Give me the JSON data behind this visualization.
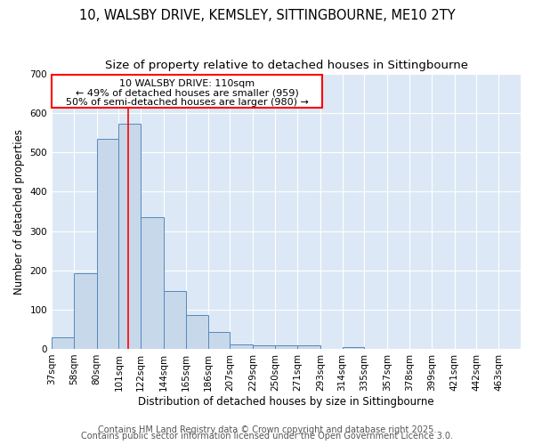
{
  "title": "10, WALSBY DRIVE, KEMSLEY, SITTINGBOURNE, ME10 2TY",
  "subtitle": "Size of property relative to detached houses in Sittingbourne",
  "xlabel": "Distribution of detached houses by size in Sittingbourne",
  "ylabel": "Number of detached properties",
  "bin_labels": [
    "37sqm",
    "58sqm",
    "80sqm",
    "101sqm",
    "122sqm",
    "144sqm",
    "165sqm",
    "186sqm",
    "207sqm",
    "229sqm",
    "250sqm",
    "271sqm",
    "293sqm",
    "314sqm",
    "335sqm",
    "357sqm",
    "378sqm",
    "399sqm",
    "421sqm",
    "442sqm",
    "463sqm"
  ],
  "bin_edges": [
    37,
    58,
    80,
    101,
    122,
    144,
    165,
    186,
    207,
    229,
    250,
    271,
    293,
    314,
    335,
    357,
    378,
    399,
    421,
    442,
    463,
    484
  ],
  "bar_heights": [
    30,
    193,
    535,
    573,
    335,
    147,
    87,
    42,
    12,
    8,
    8,
    8,
    0,
    5,
    0,
    0,
    0,
    0,
    0,
    0,
    0
  ],
  "bar_color": "#c8d8eb",
  "bar_edge_color": "#5588bb",
  "red_line_x": 110,
  "annotation_line1": "10 WALSBY DRIVE: 110sqm",
  "annotation_line2": "← 49% of detached houses are smaller (959)",
  "annotation_line3": "50% of semi-detached houses are larger (980) →",
  "ylim": [
    0,
    700
  ],
  "yticks": [
    0,
    100,
    200,
    300,
    400,
    500,
    600,
    700
  ],
  "plot_bg_color": "#dce8f5",
  "fig_bg_color": "#ffffff",
  "grid_color": "#ffffff",
  "footer_text1": "Contains HM Land Registry data © Crown copyright and database right 2025.",
  "footer_text2": "Contains public sector information licensed under the Open Government Licence 3.0.",
  "title_fontsize": 10.5,
  "subtitle_fontsize": 9.5,
  "tick_fontsize": 7.5,
  "label_fontsize": 8.5,
  "footer_fontsize": 7,
  "ann_fontsize": 8
}
